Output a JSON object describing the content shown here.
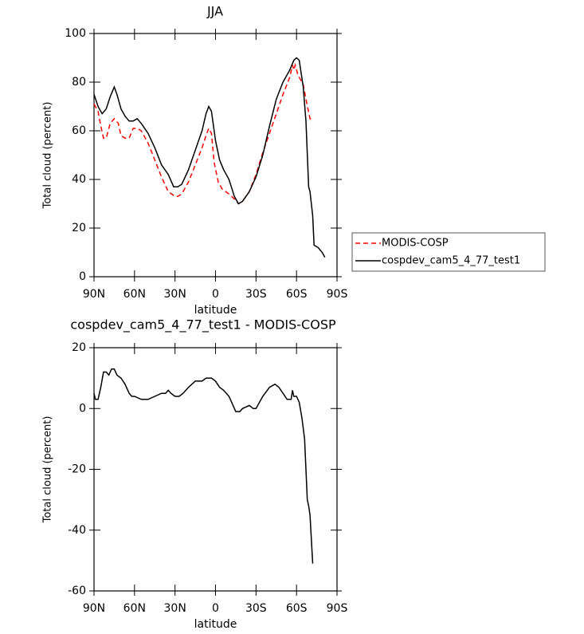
{
  "chart_data": [
    {
      "type": "line",
      "title": "JJA",
      "x_label": "latitude",
      "y_label": "Total cloud (percent)",
      "xlim": [
        90,
        -90
      ],
      "xticks": [
        {
          "value": 90,
          "label": "90N"
        },
        {
          "value": 60,
          "label": "60N"
        },
        {
          "value": 30,
          "label": "30N"
        },
        0,
        {
          "value": -30,
          "label": "30S"
        },
        {
          "value": -60,
          "label": "60S"
        },
        {
          "value": -90,
          "label": "90S"
        }
      ],
      "ylim": [
        0,
        100
      ],
      "yticks": [
        0,
        20,
        40,
        60,
        80,
        100
      ],
      "legend": "right",
      "series": [
        {
          "name": "MODIS-COSP",
          "color": "#ff0000",
          "line_style": "dashed",
          "x": [
            90,
            87,
            85,
            83,
            81,
            78,
            75,
            72,
            70,
            67,
            64,
            61,
            58,
            55,
            50,
            45,
            40,
            35,
            30,
            28,
            25,
            20,
            15,
            10,
            7,
            5,
            3,
            1,
            -2,
            -5,
            -10,
            -14,
            -17,
            -20,
            -25,
            -30,
            -35,
            -40,
            -45,
            -50,
            -55,
            -57,
            -58,
            -59,
            -61,
            -65,
            -67,
            -70,
            -72
          ],
          "values": [
            71,
            68,
            62,
            57,
            57,
            63,
            65,
            63,
            58,
            57,
            57,
            61,
            61,
            60,
            55,
            48,
            41,
            35,
            33,
            33,
            34,
            39,
            46,
            53,
            58,
            61,
            59,
            47,
            39,
            36,
            34,
            32,
            30,
            31,
            35,
            42,
            51,
            59,
            67,
            75,
            82,
            87,
            85,
            87,
            83,
            79,
            73,
            65,
            64
          ]
        },
        {
          "name": "cospdev_cam5_4_77_test1",
          "color": "#000000",
          "line_style": "solid",
          "x": [
            90,
            87,
            84,
            81,
            78,
            75,
            73,
            70,
            67,
            64,
            61,
            58,
            55,
            50,
            45,
            40,
            35,
            31,
            28,
            25,
            20,
            15,
            10,
            7,
            5,
            3,
            0,
            -3,
            -6,
            -10,
            -14,
            -17,
            -20,
            -25,
            -30,
            -35,
            -40,
            -45,
            -50,
            -55,
            -58,
            -60,
            -62,
            -65,
            -67,
            -69,
            -70,
            -72,
            -73,
            -76,
            -79,
            -81
          ],
          "values": [
            75,
            70,
            67,
            69,
            74,
            78,
            75,
            69,
            66,
            64,
            64,
            65,
            63,
            59,
            53,
            46,
            42,
            37,
            37,
            38,
            44,
            52,
            60,
            67,
            70,
            68,
            56,
            48,
            44,
            40,
            33,
            30,
            31,
            35,
            41,
            50,
            62,
            73,
            80,
            85,
            89,
            90,
            89,
            78,
            64,
            37,
            35,
            25,
            13,
            12,
            10,
            8
          ]
        }
      ]
    },
    {
      "type": "line",
      "title": "cospdev_cam5_4_77_test1 - MODIS-COSP",
      "x_label": "latitude",
      "y_label": "Total cloud (percent)",
      "xlim": [
        90,
        -90
      ],
      "xticks": [
        {
          "value": 90,
          "label": "90N"
        },
        {
          "value": 60,
          "label": "60N"
        },
        {
          "value": 30,
          "label": "30N"
        },
        0,
        {
          "value": -30,
          "label": "30S"
        },
        {
          "value": -60,
          "label": "60S"
        },
        {
          "value": -90,
          "label": "90S"
        }
      ],
      "ylim": [
        -60,
        20
      ],
      "yticks": [
        -60,
        -40,
        -20,
        0,
        20
      ],
      "series": [
        {
          "color": "#000000",
          "line_style": "solid",
          "x": [
            90,
            89,
            87,
            85,
            83,
            81,
            79,
            77,
            75,
            73,
            70,
            67,
            64,
            62,
            60,
            55,
            50,
            45,
            40,
            37,
            35,
            33,
            30,
            27,
            24,
            20,
            15,
            10,
            7,
            5,
            3,
            0,
            -3,
            -6,
            -10,
            -13,
            -15,
            -18,
            -20,
            -25,
            -28,
            -30,
            -35,
            -40,
            -44,
            -47,
            -50,
            -53,
            -56,
            -57,
            -58,
            -60,
            -62,
            -64,
            -66,
            -68,
            -69,
            -70,
            -72
          ],
          "values": [
            5,
            3,
            3,
            7,
            12,
            12,
            11,
            13,
            13,
            11,
            10,
            8,
            5,
            4,
            4,
            3,
            3,
            4,
            5,
            5,
            6,
            5,
            4,
            4,
            5,
            7,
            9,
            9,
            10,
            10,
            10,
            9,
            7,
            6,
            4,
            1,
            -1,
            -1,
            0,
            1,
            0,
            0,
            4,
            7,
            8,
            7,
            5,
            3,
            3,
            6,
            4,
            4,
            2,
            -3,
            -10,
            -30,
            -32,
            -35,
            -51
          ]
        }
      ]
    }
  ]
}
